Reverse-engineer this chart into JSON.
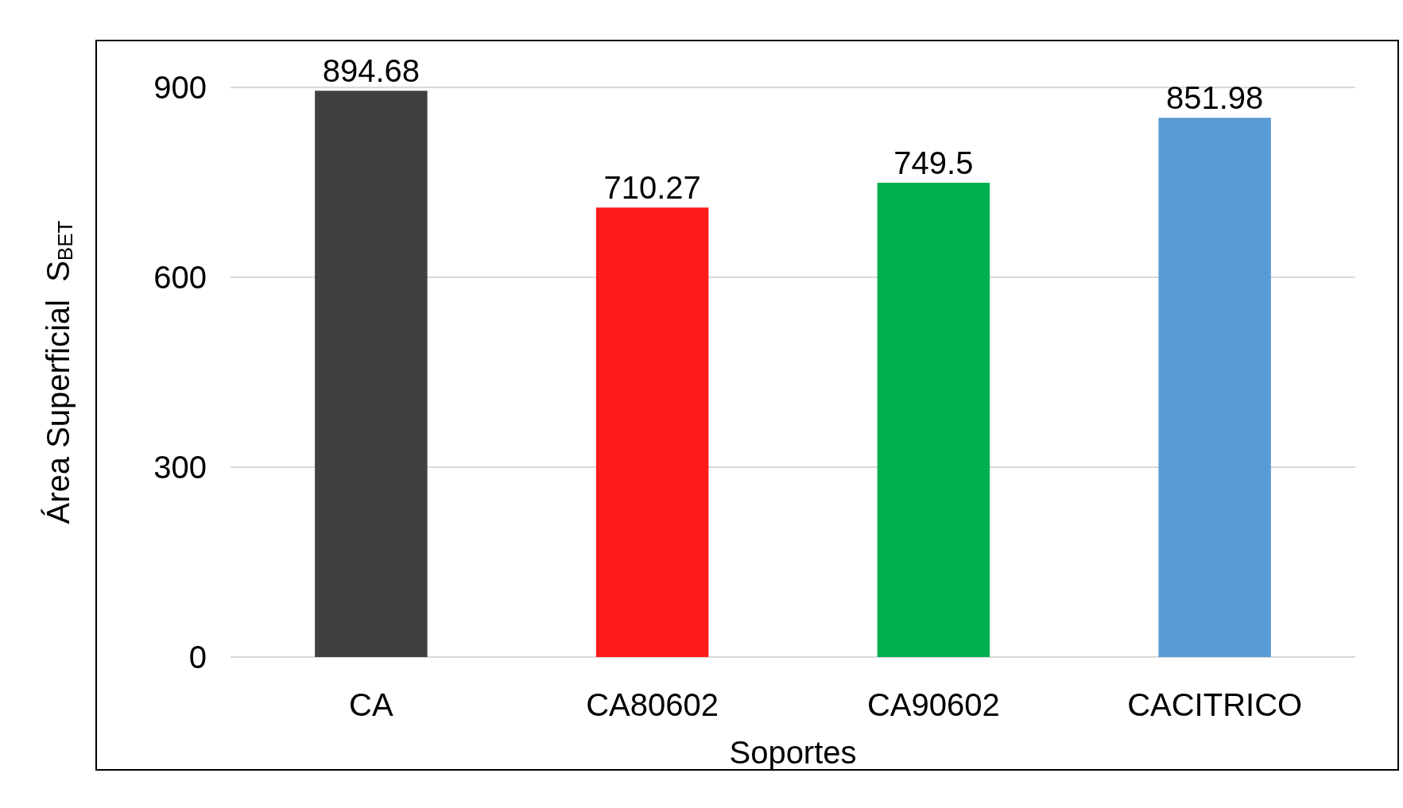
{
  "chart_data": {
    "type": "bar",
    "categories": [
      "CA",
      "CA80602",
      "CA90602",
      "CACITRICO"
    ],
    "values": [
      894.68,
      710.27,
      749.5,
      851.98
    ],
    "colors": [
      "#404040",
      "#ff1a1a",
      "#00b050",
      "#5b9bd5"
    ],
    "xlabel": "Soportes",
    "ylabel": "Área Superficial  S$_{BET}$",
    "ylim": [
      0,
      900
    ],
    "yticks": [
      0,
      300,
      600,
      900
    ],
    "grid": "y",
    "data_labels": true
  }
}
